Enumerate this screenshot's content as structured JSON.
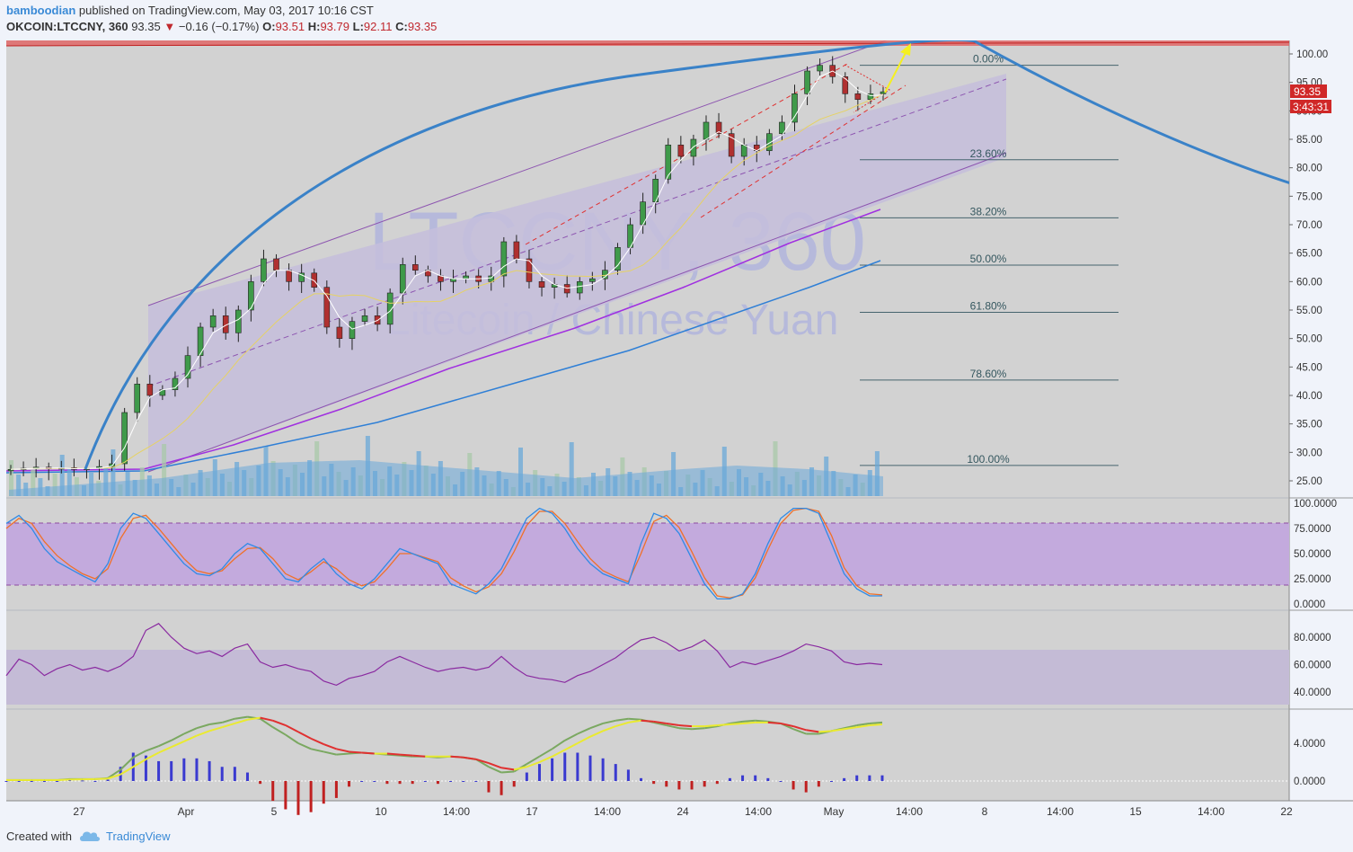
{
  "header": {
    "author": "bamboodian",
    "published_text": "published on TradingView.com, May 03, 2017 10:16 CST",
    "symbol": "OKCOIN:LTCCNY, 360",
    "last": "93.35",
    "change": "−0.16 (−0.17%)",
    "open_label": "O:",
    "open": "93.51",
    "high_label": "H:",
    "high": "93.79",
    "low_label": "L:",
    "low": "92.11",
    "close_label": "C:",
    "close": "93.35",
    "down_arrow": "▼"
  },
  "watermark": {
    "symbol": "LTCCNY, 360",
    "description": "Litecoin / Chinese Yuan"
  },
  "price_badge": "93.35",
  "countdown_badge": "3:43:31",
  "colors": {
    "up": "#3f9a4a",
    "down": "#b03030",
    "main_bg": "#d2d2d2",
    "channel": "#c4bcdb",
    "resistance": "#e06868"
  },
  "chart_data": [
    {
      "type": "candlestick",
      "title": "OKCOIN:LTCCNY, 360",
      "y_axis_ticks": [
        "100.00",
        "95.00",
        "90.00",
        "85.00",
        "80.00",
        "75.00",
        "70.00",
        "65.00",
        "60.00",
        "55.00",
        "50.00",
        "45.00",
        "40.00",
        "35.00",
        "30.00",
        "25.00"
      ],
      "ylim": [
        22.5,
        102
      ],
      "x_axis_ticks": [
        "27",
        "Apr",
        "5",
        "10",
        "14:00",
        "17",
        "14:00",
        "24",
        "14:00",
        "May",
        "14:00",
        "8",
        "14:00",
        "15",
        "14:00",
        "22"
      ],
      "close_path": [
        27.0,
        27.2,
        27.4,
        27.1,
        27.3,
        27.0,
        27.2,
        27.5,
        28.0,
        37.0,
        42.0,
        40.0,
        41.0,
        43.0,
        47.0,
        52.0,
        54.0,
        51.0,
        55.0,
        60.0,
        64.0,
        62.0,
        60.0,
        61.5,
        59.0,
        52.0,
        50.0,
        53.0,
        54.0,
        52.5,
        58.0,
        63.0,
        62.0,
        61.0,
        60.0,
        60.5,
        61.0,
        60.0,
        61.0,
        67.0,
        64.0,
        60.0,
        59.0,
        59.5,
        58.0,
        60.0,
        60.5,
        62.0,
        66.0,
        70.0,
        74.0,
        78.0,
        84.0,
        82.0,
        85.0,
        88.0,
        86.0,
        82.0,
        84.0,
        83.0,
        86.0,
        88.0,
        93.0,
        97.0,
        98.0,
        96.0,
        93.0,
        92.0,
        93.0,
        93.35
      ],
      "fibonacci": [
        {
          "level": "0.00%",
          "price": 98.0
        },
        {
          "level": "23.60%",
          "price": 81.4
        },
        {
          "level": "38.20%",
          "price": 71.2
        },
        {
          "level": "50.00%",
          "price": 62.9
        },
        {
          "level": "61.80%",
          "price": 54.6
        },
        {
          "level": "78.60%",
          "price": 42.7
        },
        {
          "level": "100.00%",
          "price": 27.7
        }
      ],
      "last_price": 93.35,
      "volume": "histogram"
    },
    {
      "type": "line",
      "name": "Stochastic",
      "y_axis_ticks": [
        "100.0000",
        "75.0000",
        "50.0000",
        "25.0000",
        "0.0000"
      ],
      "ylim": [
        0,
        100
      ],
      "band": [
        20,
        80
      ],
      "k_values": [
        80,
        88,
        75,
        55,
        42,
        35,
        28,
        22,
        40,
        75,
        90,
        85,
        70,
        55,
        40,
        30,
        28,
        35,
        50,
        60,
        55,
        40,
        25,
        22,
        35,
        45,
        30,
        20,
        15,
        25,
        40,
        55,
        50,
        45,
        40,
        20,
        15,
        10,
        20,
        35,
        60,
        85,
        95,
        90,
        75,
        55,
        40,
        30,
        25,
        20,
        60,
        90,
        85,
        70,
        45,
        20,
        5,
        5,
        10,
        30,
        60,
        85,
        95,
        95,
        90,
        60,
        30,
        15,
        8,
        8
      ],
      "d_values": [
        75,
        85,
        80,
        62,
        48,
        38,
        30,
        25,
        35,
        65,
        85,
        88,
        75,
        60,
        45,
        33,
        30,
        33,
        45,
        55,
        56,
        45,
        30,
        24,
        32,
        42,
        35,
        24,
        18,
        22,
        35,
        50,
        50,
        46,
        42,
        26,
        18,
        12,
        17,
        30,
        52,
        78,
        92,
        92,
        80,
        62,
        45,
        33,
        27,
        22,
        50,
        82,
        88,
        76,
        52,
        26,
        8,
        6,
        9,
        26,
        54,
        80,
        93,
        95,
        92,
        68,
        36,
        18,
        10,
        9
      ]
    },
    {
      "type": "line",
      "name": "RSI",
      "y_axis_ticks": [
        "80.0000",
        "60.0000",
        "40.0000"
      ],
      "ylim": [
        27,
        93
      ],
      "band": [
        30,
        70
      ],
      "values": [
        52,
        64,
        60,
        52,
        57,
        60,
        56,
        58,
        55,
        59,
        66,
        85,
        90,
        80,
        72,
        68,
        70,
        66,
        72,
        75,
        62,
        58,
        60,
        57,
        55,
        48,
        45,
        50,
        52,
        55,
        62,
        66,
        62,
        58,
        55,
        57,
        58,
        56,
        58,
        66,
        58,
        52,
        50,
        49,
        47,
        52,
        55,
        60,
        65,
        72,
        78,
        80,
        76,
        70,
        73,
        78,
        70,
        58,
        62,
        60,
        63,
        66,
        70,
        75,
        73,
        70,
        62,
        60,
        61,
        60
      ]
    },
    {
      "type": "line",
      "name": "MACD",
      "y_axis_ticks": [
        "4.0000",
        "0.0000"
      ],
      "ylim": [
        -2.2,
        8.8
      ],
      "macd": [
        0.1,
        0.1,
        0.1,
        0.1,
        0.1,
        0.2,
        0.2,
        0.2,
        0.3,
        1.2,
        2.5,
        3.2,
        3.7,
        4.3,
        5.0,
        5.6,
        6.0,
        6.2,
        6.6,
        6.8,
        6.6,
        5.7,
        4.9,
        4.0,
        3.4,
        3.1,
        2.8,
        2.9,
        3.0,
        2.9,
        2.8,
        2.7,
        2.6,
        2.6,
        2.5,
        2.6,
        2.5,
        2.3,
        1.5,
        0.9,
        1.0,
        1.8,
        2.6,
        3.4,
        4.3,
        5.0,
        5.6,
        6.1,
        6.4,
        6.6,
        6.5,
        6.2,
        5.9,
        5.6,
        5.5,
        5.6,
        5.8,
        6.1,
        6.3,
        6.4,
        6.3,
        6.1,
        5.5,
        5.0,
        5.0,
        5.3,
        5.6,
        5.9,
        6.1,
        6.2
      ],
      "signal": [
        0.1,
        0.1,
        0.1,
        0.1,
        0.1,
        0.15,
        0.18,
        0.2,
        0.25,
        0.7,
        1.5,
        2.3,
        3.0,
        3.6,
        4.2,
        4.8,
        5.3,
        5.7,
        6.1,
        6.5,
        6.7,
        6.4,
        5.9,
        5.2,
        4.5,
        3.9,
        3.4,
        3.1,
        3.0,
        2.9,
        2.9,
        2.8,
        2.7,
        2.6,
        2.6,
        2.6,
        2.5,
        2.3,
        1.9,
        1.4,
        1.2,
        1.5,
        2.0,
        2.6,
        3.3,
        4.0,
        4.7,
        5.3,
        5.8,
        6.2,
        6.4,
        6.3,
        6.1,
        5.9,
        5.8,
        5.8,
        5.9,
        6.0,
        6.1,
        6.2,
        6.2,
        6.1,
        5.8,
        5.4,
        5.2,
        5.3,
        5.5,
        5.7,
        5.9,
        6.0
      ]
    }
  ],
  "footer": {
    "created_with": "Created with",
    "brand": "TradingView"
  }
}
